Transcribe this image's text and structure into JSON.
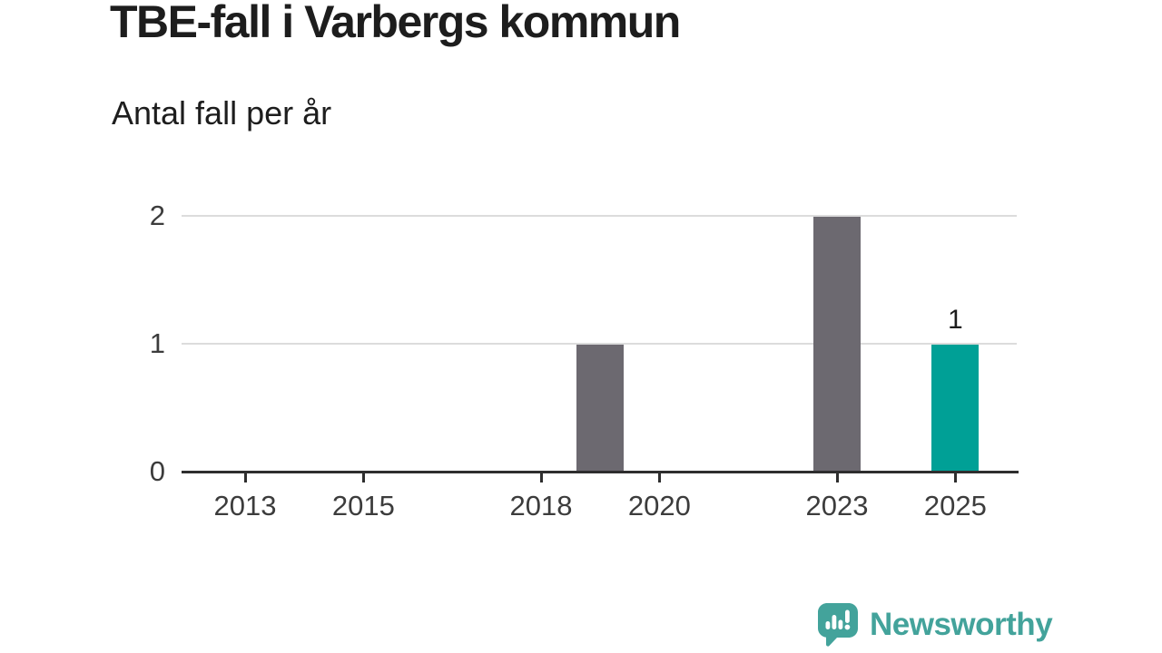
{
  "header": {
    "title": "TBE-fall i Varbergs kommun",
    "subtitle": "Antal fall per år"
  },
  "colors": {
    "bar_default": "#6c6970",
    "bar_highlight": "#00a096",
    "gridline": "#dcdcdc",
    "axis": "#2e2e2e",
    "text": "#1d1d1d",
    "axis_text": "#3c3c3c",
    "brand_teal": "#43a39b",
    "background": "#ffffff"
  },
  "chart_data": {
    "type": "bar",
    "title": "TBE-fall i Varbergs kommun",
    "subtitle": "Antal fall per år",
    "xlabel": "",
    "ylabel": "Antal fall per år",
    "ylim": [
      0,
      2
    ],
    "y_ticks": [
      0,
      1,
      2
    ],
    "x_tick_years": [
      2013,
      2015,
      2018,
      2020,
      2023,
      2025
    ],
    "x_tick_labels": [
      "2013",
      "2015",
      "2018",
      "2020",
      "2023",
      "2025"
    ],
    "grid": "horizontal-only",
    "legend": "none",
    "highlight_year": 2025,
    "series": [
      {
        "year": 2012,
        "value": 0
      },
      {
        "year": 2013,
        "value": 0
      },
      {
        "year": 2014,
        "value": 0
      },
      {
        "year": 2015,
        "value": 0
      },
      {
        "year": 2016,
        "value": 0
      },
      {
        "year": 2017,
        "value": 0
      },
      {
        "year": 2018,
        "value": 0
      },
      {
        "year": 2019,
        "value": 1
      },
      {
        "year": 2020,
        "value": 0
      },
      {
        "year": 2021,
        "value": 0
      },
      {
        "year": 2022,
        "value": 0
      },
      {
        "year": 2023,
        "value": 2
      },
      {
        "year": 2024,
        "value": 0
      },
      {
        "year": 2025,
        "value": 1
      }
    ],
    "value_labels": [
      {
        "year": 2025,
        "text": "1"
      }
    ]
  },
  "footer": {
    "brand_name": "Newsworthy",
    "brand_icon": "newsworthy-speech-bubble-chart-icon"
  }
}
